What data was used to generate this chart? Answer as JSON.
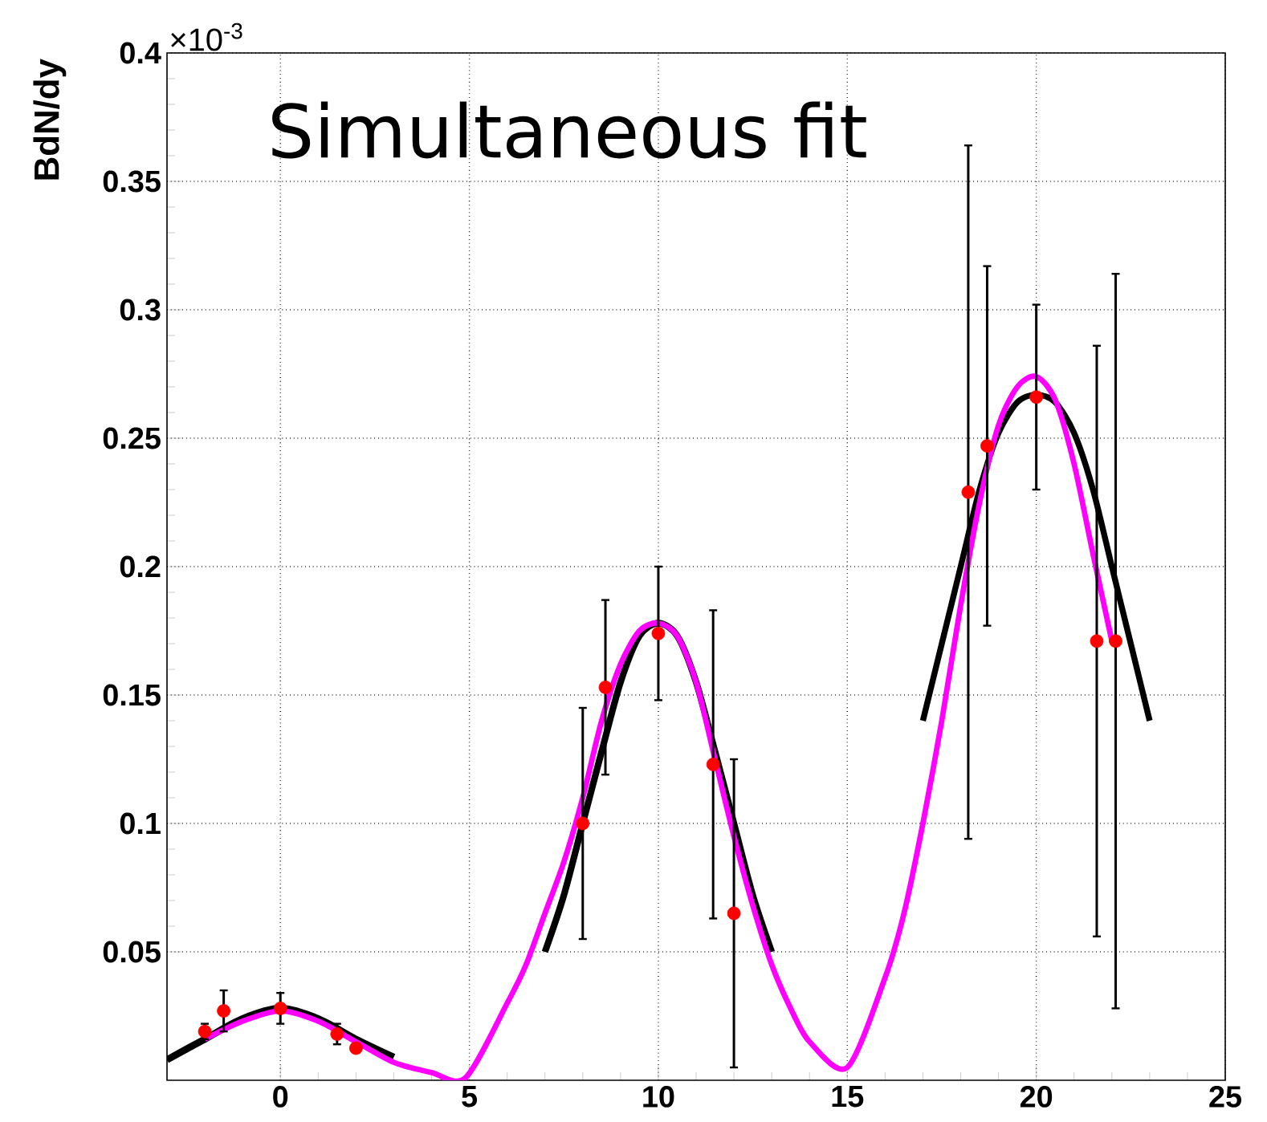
{
  "chart_data": {
    "type": "line",
    "title": "Simultaneous fit",
    "ylabel": "BdN/dy",
    "annotations": [
      "×10$^{-3}$"
    ],
    "xlim": [
      -3,
      25
    ],
    "xticks": [
      0,
      5,
      10,
      15,
      20,
      25
    ],
    "ylim": [
      0,
      0.4
    ],
    "yticks": [
      0.05,
      0.1,
      0.15,
      0.2,
      0.25,
      0.3,
      0.35,
      0.4
    ],
    "grid": true,
    "series": [
      {
        "type": "line",
        "color": "#000000",
        "marker": "none",
        "x": [
          -3,
          -2,
          -1,
          0,
          1,
          2,
          3
        ],
        "values": [
          0.008,
          0.016,
          0.024,
          0.028,
          0.024,
          0.016,
          0.009
        ]
      },
      {
        "type": "line",
        "color": "#000000",
        "marker": "none",
        "x": [
          7,
          7.5,
          8,
          8.5,
          9,
          9.5,
          10,
          10.5,
          11,
          11.5,
          12,
          12.5,
          13
        ],
        "values": [
          0.05,
          0.072,
          0.1,
          0.128,
          0.155,
          0.173,
          0.178,
          0.173,
          0.155,
          0.128,
          0.1,
          0.072,
          0.05
        ]
      },
      {
        "type": "line",
        "color": "#000000",
        "marker": "none",
        "x": [
          17,
          17.5,
          18,
          18.5,
          19,
          19.5,
          20,
          20.5,
          21,
          21.5,
          22,
          22.5,
          23
        ],
        "values": [
          0.14,
          0.17,
          0.2,
          0.23,
          0.252,
          0.264,
          0.267,
          0.264,
          0.252,
          0.23,
          0.2,
          0.17,
          0.14
        ]
      },
      {
        "color": "#ff00ff",
        "marker": "none",
        "x": [
          -2,
          -1,
          0,
          1,
          2,
          3,
          4,
          4.9,
          6,
          6.5,
          7,
          7.5,
          8,
          8.5,
          9,
          9.5,
          10,
          10.5,
          11,
          11.5,
          12,
          12.5,
          13,
          13.5,
          14,
          15,
          16,
          16.5,
          17,
          17.5,
          18,
          18.5,
          19,
          19.5,
          20,
          20.5,
          21,
          21.5,
          22
        ],
        "values": [
          0.016,
          0.023,
          0.027,
          0.023,
          0.015,
          0.007,
          0.003,
          0.001,
          0.03,
          0.045,
          0.065,
          0.085,
          0.11,
          0.14,
          0.162,
          0.175,
          0.178,
          0.173,
          0.155,
          0.125,
          0.095,
          0.068,
          0.045,
          0.028,
          0.015,
          0.005,
          0.04,
          0.065,
          0.1,
          0.14,
          0.185,
          0.225,
          0.255,
          0.27,
          0.274,
          0.265,
          0.24,
          0.205,
          0.171
        ]
      },
      {
        "type": "scatter",
        "color": "#ff0000",
        "marker": "circle",
        "x": [
          -2,
          -1.5,
          0,
          1.5,
          2,
          8,
          8.6,
          10,
          11.45,
          12,
          18.2,
          18.7,
          20,
          21.6,
          22.1
        ],
        "values": [
          0.019,
          0.027,
          0.028,
          0.018,
          0.0125,
          0.1,
          0.153,
          0.174,
          0.123,
          0.065,
          0.229,
          0.247,
          0.266,
          0.171,
          0.171
        ],
        "errors": [
          0.003,
          0.008,
          0.006,
          0.004,
          null,
          0.045,
          0.034,
          0.026,
          0.06,
          0.06,
          0.135,
          0.07,
          0.036,
          0.115,
          0.143
        ]
      }
    ]
  }
}
